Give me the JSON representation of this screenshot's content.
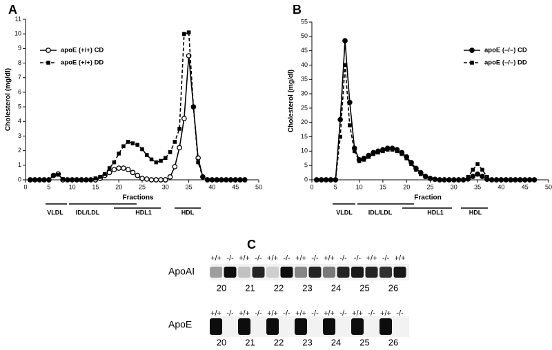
{
  "chart_data": [
    {
      "type": "line",
      "panel": "A",
      "xlabel": "Fractions",
      "ylabel": "Cholesterol (mg/dl)",
      "x": [
        1,
        2,
        3,
        4,
        5,
        6,
        7,
        8,
        9,
        10,
        11,
        12,
        13,
        14,
        15,
        16,
        17,
        18,
        19,
        20,
        21,
        22,
        23,
        24,
        25,
        26,
        27,
        28,
        29,
        30,
        31,
        32,
        33,
        34,
        35,
        36,
        37,
        38,
        39,
        40,
        41,
        42,
        43,
        44,
        45,
        46,
        47
      ],
      "series": [
        {
          "name": "apoE (+/+) CD",
          "color": "#000000",
          "marker": "circle-open",
          "dashed": false,
          "values": [
            0,
            0,
            0,
            0,
            0,
            0.3,
            0.4,
            0,
            0,
            0,
            0,
            0,
            0,
            0,
            0,
            0.1,
            0.3,
            0.5,
            0.7,
            0.8,
            0.8,
            0.7,
            0.5,
            0.3,
            0.1,
            0.05,
            0,
            0,
            0,
            0,
            0.2,
            0.9,
            2.2,
            4.2,
            8.5,
            5.0,
            1.5,
            0.2,
            0,
            0,
            0,
            0,
            0,
            0,
            0,
            0,
            0
          ]
        },
        {
          "name": "apoE (+/+) DD",
          "color": "#000000",
          "marker": "square",
          "dashed": true,
          "values": [
            0,
            0,
            0,
            0,
            0,
            0.3,
            0.35,
            0.05,
            0,
            0,
            0,
            0,
            0,
            0,
            0.1,
            0.2,
            0.4,
            0.8,
            1.2,
            1.8,
            2.3,
            2.6,
            2.5,
            2.4,
            2.1,
            1.7,
            1.4,
            1.2,
            1.3,
            1.5,
            1.9,
            2.6,
            3.5,
            10.0,
            10.1,
            5.0,
            1.2,
            0.2,
            0,
            0,
            0,
            0,
            0,
            0,
            0,
            0,
            0
          ]
        }
      ],
      "xlim": [
        0,
        50
      ],
      "xticks": [
        0,
        5,
        10,
        15,
        20,
        25,
        30,
        35,
        40,
        45,
        50
      ],
      "ylim": [
        0,
        11
      ],
      "yticks": [
        0,
        1,
        2,
        3,
        4,
        5,
        6,
        7,
        8,
        9,
        10,
        11
      ],
      "legend": "upper left",
      "fraction_labels": [
        "VLDL",
        "IDL/LDL",
        "HDL1",
        "HDL"
      ]
    },
    {
      "type": "line",
      "panel": "B",
      "xlabel": "Fraction",
      "ylabel": "Cholesterol (mg/dl)",
      "x": [
        1,
        2,
        3,
        4,
        5,
        6,
        7,
        8,
        9,
        10,
        11,
        12,
        13,
        14,
        15,
        16,
        17,
        18,
        19,
        20,
        21,
        22,
        23,
        24,
        25,
        26,
        27,
        28,
        29,
        30,
        31,
        32,
        33,
        34,
        35,
        36,
        37,
        38,
        39,
        40,
        41,
        42,
        43,
        44,
        45,
        46,
        47
      ],
      "series": [
        {
          "name": "apoE (–/–) CD",
          "color": "#000000",
          "marker": "circle",
          "dashed": false,
          "values": [
            0,
            0,
            0,
            0,
            0,
            21,
            48.5,
            27,
            11,
            7,
            7.5,
            8.5,
            9.5,
            10,
            10.5,
            11,
            11,
            10.5,
            9.5,
            8,
            6,
            4,
            2.5,
            1.2,
            0.5,
            0.2,
            0,
            0,
            0,
            0,
            0,
            0,
            0.3,
            1.2,
            2,
            1.2,
            0.2,
            0,
            0,
            0,
            0,
            0,
            0,
            0,
            0,
            0,
            0
          ]
        },
        {
          "name": "apoE (–/–) DD",
          "color": "#000000",
          "marker": "square",
          "dashed": true,
          "values": [
            0,
            0,
            0,
            0,
            0,
            15,
            40,
            19,
            10,
            6.5,
            7,
            8,
            9,
            9.5,
            10,
            10.5,
            10.5,
            10,
            9,
            7.5,
            5.5,
            3.5,
            2,
            1,
            0.4,
            0.1,
            0,
            0,
            0,
            0,
            0,
            0,
            1,
            3.5,
            5.5,
            3.5,
            1,
            0,
            0,
            0,
            0,
            0,
            0,
            0,
            0,
            0,
            0
          ]
        }
      ],
      "xlim": [
        0,
        50
      ],
      "xticks": [
        0,
        5,
        10,
        15,
        20,
        25,
        30,
        35,
        40,
        45,
        50
      ],
      "ylim": [
        0,
        55
      ],
      "yticks": [
        0,
        5,
        10,
        15,
        20,
        25,
        30,
        35,
        40,
        45,
        50,
        55
      ],
      "legend": "upper right",
      "fraction_labels": [
        "VLDL",
        "IDL/LDL",
        "HDL1",
        "HDL"
      ]
    }
  ],
  "panel_c": {
    "label": "C",
    "rows": [
      {
        "name": "ApoAI",
        "genotypes": [
          "+/+",
          "-/-",
          "+/+",
          "-/-",
          "+/+",
          "-/-",
          "+/+",
          "-/-",
          "+/+",
          "-/-",
          "-/-",
          "+/+",
          "-/-",
          "+/+"
        ],
        "fractions": [
          20,
          21,
          22,
          23,
          24,
          25,
          26
        ]
      },
      {
        "name": "ApoE",
        "genotypes": [
          "+/+",
          "-/-",
          "+/+",
          "-/-",
          "+/+",
          "-/-",
          "+/+",
          "-/-",
          "+/+",
          "-/-",
          "+/+",
          "-/-",
          "+/+",
          "-/-"
        ],
        "fractions": [
          20,
          21,
          22,
          23,
          24,
          25,
          26
        ]
      }
    ]
  }
}
